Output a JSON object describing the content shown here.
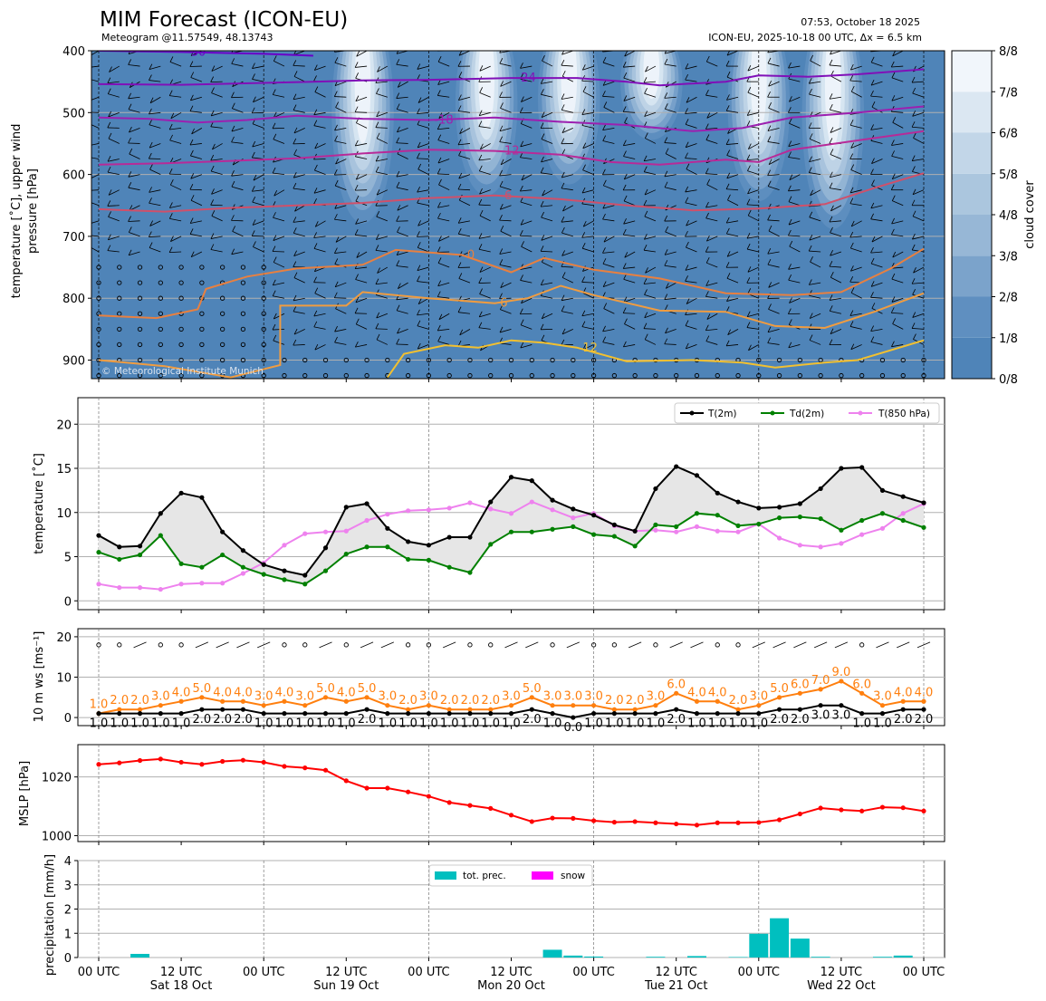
{
  "header": {
    "title": "MIM Forecast (ICON-EU)",
    "subtitle": "Meteogram @11.57549, 48.13743",
    "run_time": "07:53, October 18 2025",
    "model_info": "ICON-EU, 2025-10-18 00 UTC, Δx = 6.5 km",
    "watermark": "© Meteorological Institute Munich"
  },
  "x_axis": {
    "tick_labels": [
      "00 UTC",
      "12 UTC",
      "00 UTC",
      "12 UTC",
      "00 UTC",
      "12 UTC",
      "00 UTC",
      "12 UTC",
      "00 UTC",
      "12 UTC",
      "00 UTC"
    ],
    "day_labels": [
      "Sat 18 Oct",
      "Sun 19 Oct",
      "Mon 20 Oct",
      "Tue 21 Oct",
      "Wed 22 Oct"
    ]
  },
  "colors": {
    "cloud_scale": [
      "#4f84b8",
      "#5f8fc0",
      "#7ba3cb",
      "#97b7d6",
      "#abc6de",
      "#c2d6e8",
      "#dbe7f2",
      "#f1f6fb"
    ],
    "t2m": "#000000",
    "td2m": "#008000",
    "t850": "#ee82ee",
    "wind_mean": "#000000",
    "wind_gust": "#ff7f0e",
    "mslp": "#ff0000",
    "precip": "#00bfbf",
    "snow": "#ff00ff"
  },
  "chart_data": [
    {
      "type": "heatmap",
      "name": "upper-air",
      "ylabel": "temperature [˚C], upper wind\npressure [hPa]",
      "y_ticks": [
        400,
        500,
        600,
        700,
        800,
        900
      ],
      "ylim": [
        930,
        400
      ],
      "colorbar": {
        "label": "cloud cover",
        "ticks": [
          "0/8",
          "1/8",
          "2/8",
          "3/8",
          "4/8",
          "5/8",
          "6/8",
          "7/8",
          "8/8"
        ]
      },
      "cloud_columns": [
        {
          "x": 1.6,
          "top": 400,
          "bottom": 710
        },
        {
          "x": 2.35,
          "top": 400,
          "bottom": 660
        },
        {
          "x": 2.85,
          "top": 400,
          "bottom": 640
        },
        {
          "x": 3.35,
          "top": 400,
          "bottom": 560
        },
        {
          "x": 4.0,
          "top": 400,
          "bottom": 670
        },
        {
          "x": 4.45,
          "top": 400,
          "bottom": 720
        }
      ],
      "isotherms": [
        {
          "label": "-30",
          "color": "#6a00c8",
          "points": [
            [
              0,
              400
            ],
            [
              0.5,
              402
            ],
            [
              1,
              405
            ],
            [
              1.3,
              408
            ]
          ]
        },
        {
          "label": "-24",
          "color": "#8010b8",
          "points": [
            [
              0,
              454
            ],
            [
              0.5,
              455
            ],
            [
              1,
              452
            ],
            [
              1.3,
              450
            ],
            [
              1.6,
              448
            ],
            [
              2,
              447
            ],
            [
              2.5,
              444
            ],
            [
              2.9,
              444
            ],
            [
              3.2,
              450
            ],
            [
              3.4,
              456
            ],
            [
              3.8,
              450
            ],
            [
              4,
              440
            ],
            [
              4.3,
              442
            ],
            [
              4.6,
              438
            ],
            [
              5,
              430
            ]
          ]
        },
        {
          "label": "-18",
          "color": "#9c20b0",
          "points": [
            [
              0,
              508
            ],
            [
              0.3,
              510
            ],
            [
              0.6,
              516
            ],
            [
              0.9,
              512
            ],
            [
              1.2,
              505
            ],
            [
              1.6,
              510
            ],
            [
              2,
              512
            ],
            [
              2.4,
              508
            ],
            [
              2.8,
              515
            ],
            [
              3.2,
              520
            ],
            [
              3.6,
              530
            ],
            [
              3.9,
              525
            ],
            [
              4.2,
              508
            ],
            [
              4.6,
              500
            ],
            [
              5,
              490
            ]
          ]
        },
        {
          "label": "-12",
          "color": "#b82a98",
          "points": [
            [
              0,
              584
            ],
            [
              0.4,
              582
            ],
            [
              0.8,
              578
            ],
            [
              1.2,
              574
            ],
            [
              1.6,
              566
            ],
            [
              2,
              560
            ],
            [
              2.4,
              562
            ],
            [
              2.8,
              568
            ],
            [
              3.1,
              580
            ],
            [
              3.4,
              584
            ],
            [
              3.8,
              576
            ],
            [
              4,
              580
            ],
            [
              4.2,
              560
            ],
            [
              4.6,
              545
            ],
            [
              5,
              530
            ]
          ]
        },
        {
          "label": "-6",
          "color": "#d0506a",
          "points": [
            [
              0,
              656
            ],
            [
              0.4,
              660
            ],
            [
              0.8,
              654
            ],
            [
              1.2,
              650
            ],
            [
              1.6,
              646
            ],
            [
              2,
              638
            ],
            [
              2.4,
              634
            ],
            [
              2.8,
              640
            ],
            [
              3.2,
              650
            ],
            [
              3.6,
              658
            ],
            [
              4,
              655
            ],
            [
              4.4,
              648
            ],
            [
              4.7,
              622
            ],
            [
              5,
              598
            ]
          ]
        },
        {
          "label": "0",
          "color": "#e88040",
          "points": [
            [
              0,
              828
            ],
            [
              0.35,
              832
            ],
            [
              0.6,
              818
            ],
            [
              0.65,
              785
            ],
            [
              0.9,
              765
            ],
            [
              1.2,
              752
            ],
            [
              1.6,
              746
            ],
            [
              1.8,
              722
            ],
            [
              2.2,
              730
            ],
            [
              2.5,
              758
            ],
            [
              2.7,
              735
            ],
            [
              3,
              754
            ],
            [
              3.4,
              768
            ],
            [
              3.8,
              792
            ],
            [
              4.2,
              795
            ],
            [
              4.5,
              790
            ],
            [
              4.8,
              752
            ],
            [
              5,
              720
            ]
          ]
        },
        {
          "label": "6",
          "color": "#f09c40",
          "points": [
            [
              0,
              900
            ],
            [
              0.4,
              910
            ],
            [
              0.8,
              928
            ],
            [
              1.1,
              908
            ],
            [
              1.1,
              812
            ],
            [
              1.5,
              812
            ],
            [
              1.6,
              790
            ],
            [
              2,
              800
            ],
            [
              2.4,
              808
            ],
            [
              2.6,
              800
            ],
            [
              2.8,
              780
            ],
            [
              3,
              795
            ],
            [
              3.4,
              820
            ],
            [
              3.8,
              822
            ],
            [
              4.1,
              845
            ],
            [
              4.4,
              848
            ],
            [
              4.7,
              822
            ],
            [
              5,
              792
            ]
          ]
        },
        {
          "label": "12",
          "color": "#f2c030",
          "points": [
            [
              1.75,
              928
            ],
            [
              1.85,
              890
            ],
            [
              2.1,
              876
            ],
            [
              2.3,
              880
            ],
            [
              2.5,
              868
            ],
            [
              2.7,
              872
            ],
            [
              2.9,
              880
            ],
            [
              3.2,
              902
            ],
            [
              3.6,
              900
            ],
            [
              3.9,
              904
            ],
            [
              4.1,
              912
            ],
            [
              4.4,
              904
            ],
            [
              4.6,
              900
            ],
            [
              5,
              868
            ]
          ]
        }
      ]
    },
    {
      "type": "line",
      "name": "temperature",
      "ylabel": "temperature [˚C]",
      "ylim": [
        -1,
        23
      ],
      "y_ticks": [
        0,
        5,
        10,
        15,
        20
      ],
      "x": [
        0,
        0.125,
        0.25,
        0.375,
        0.5,
        0.625,
        0.75,
        0.875,
        1,
        1.125,
        1.25,
        1.375,
        1.5,
        1.625,
        1.75,
        1.875,
        2,
        2.125,
        2.25,
        2.375,
        2.5,
        2.625,
        2.75,
        2.875,
        3,
        3.125,
        3.25,
        3.375,
        3.5,
        3.625,
        3.75,
        3.875,
        4,
        4.125,
        4.25,
        4.375,
        4.5,
        4.625,
        4.75,
        4.875,
        5
      ],
      "series": [
        {
          "name": "T(2m)",
          "values": [
            7.4,
            6.1,
            6.2,
            9.9,
            12.2,
            11.7,
            7.8,
            5.7,
            4.1,
            3.4,
            2.9,
            6.0,
            10.6,
            11.0,
            8.2,
            6.7,
            6.3,
            7.2,
            7.2,
            11.2,
            14.0,
            13.6,
            11.4,
            10.4,
            9.7,
            8.6,
            7.9,
            12.7,
            15.2,
            14.2,
            12.2,
            11.2,
            10.5,
            10.6,
            11.0,
            12.7,
            15.0,
            15.1,
            12.5,
            11.8,
            11.1
          ]
        },
        {
          "name": "Td(2m)",
          "values": [
            5.5,
            4.7,
            5.2,
            7.4,
            4.2,
            3.8,
            5.2,
            3.8,
            3.0,
            2.4,
            1.9,
            3.4,
            5.3,
            6.1,
            6.1,
            4.7,
            4.6,
            3.8,
            3.2,
            6.4,
            7.8,
            7.8,
            8.1,
            8.4,
            7.5,
            7.3,
            6.2,
            8.6,
            8.4,
            9.9,
            9.7,
            8.5,
            8.7,
            9.4,
            9.5,
            9.3,
            8.0,
            9.1,
            9.9,
            9.1,
            8.3
          ]
        },
        {
          "name": "T(850 hPa)",
          "values": [
            1.9,
            1.5,
            1.5,
            1.3,
            1.9,
            2.0,
            2.0,
            3.1,
            4.3,
            6.3,
            7.6,
            7.8,
            7.9,
            9.1,
            9.8,
            10.2,
            10.3,
            10.5,
            11.1,
            10.4,
            9.9,
            11.2,
            10.3,
            9.4,
            9.9,
            8.5,
            7.9,
            8.0,
            7.8,
            8.4,
            7.9,
            7.8,
            8.7,
            7.1,
            6.3,
            6.1,
            6.5,
            7.5,
            8.2,
            9.9,
            11.0
          ]
        }
      ]
    },
    {
      "type": "line",
      "name": "wind",
      "ylabel": "10 m ws [ms⁻¹]",
      "ylim": [
        -2,
        22
      ],
      "y_ticks": [
        0,
        10,
        20
      ],
      "x": [
        0,
        0.125,
        0.25,
        0.375,
        0.5,
        0.625,
        0.75,
        0.875,
        1,
        1.125,
        1.25,
        1.375,
        1.5,
        1.625,
        1.75,
        1.875,
        2,
        2.125,
        2.25,
        2.375,
        2.5,
        2.625,
        2.75,
        2.875,
        3,
        3.125,
        3.25,
        3.375,
        3.5,
        3.625,
        3.75,
        3.875,
        4,
        4.125,
        4.25,
        4.375,
        4.5,
        4.625,
        4.75,
        4.875,
        5
      ],
      "series": [
        {
          "name": "mean",
          "values": [
            1.0,
            1.0,
            1.0,
            1.0,
            1.0,
            2.0,
            2.0,
            2.0,
            1.0,
            1.0,
            1.0,
            1.0,
            1.0,
            2.0,
            1.0,
            1.0,
            1.0,
            1.0,
            1.0,
            1.0,
            1.0,
            2.0,
            1.0,
            0.0,
            1.0,
            1.0,
            1.0,
            1.0,
            2.0,
            1.0,
            1.0,
            1.0,
            1.0,
            2.0,
            2.0,
            3.0,
            3.0,
            1.0,
            1.0,
            2.0,
            2.0
          ]
        },
        {
          "name": "gust",
          "values": [
            1.0,
            2.0,
            2.0,
            3.0,
            4.0,
            5.0,
            4.0,
            4.0,
            3.0,
            4.0,
            3.0,
            5.0,
            4.0,
            5.0,
            3.0,
            2.0,
            3.0,
            2.0,
            2.0,
            2.0,
            3.0,
            5.0,
            3.0,
            3.0,
            3.0,
            2.0,
            2.0,
            3.0,
            6.0,
            4.0,
            4.0,
            2.0,
            3.0,
            5.0,
            6.0,
            7.0,
            9.0,
            6.0,
            3.0,
            4.0,
            4.0
          ]
        }
      ],
      "mean_labels": [
        "1.0",
        "1.0",
        "1.0",
        "1.0",
        "1.0",
        "2.0",
        "2.0",
        "2.0",
        "1.0",
        "1.0",
        "1.0",
        "1.0",
        "1.0",
        "2.0",
        "1.0",
        "1.0",
        "1.0",
        "1.0",
        "1.0",
        "1.0",
        "1.0",
        "2.0",
        "1.0",
        "0.0",
        "1.0",
        "1.0",
        "1.0",
        "1.0",
        "2.0",
        "1.0",
        "1.0",
        "1.0",
        "1.0",
        "2.0",
        "2.0",
        "3.0",
        "3.0",
        "1.0",
        "1.0",
        "2.0",
        "2.0"
      ],
      "gust_labels": [
        "1.0",
        "2.0",
        "2.0",
        "3.0",
        "4.0",
        "5.0",
        "4.0",
        "4.0",
        "3.0",
        "4.0",
        "3.0",
        "5.0",
        "4.0",
        "5.0",
        "3.0",
        "2.0",
        "3.0",
        "2.0",
        "2.0",
        "2.0",
        "3.0",
        "5.0",
        "3.0",
        "3.0",
        "3.0",
        "2.0",
        "2.0",
        "3.0",
        "6.0",
        "4.0",
        "4.0",
        "2.0",
        "3.0",
        "5.0",
        "6.0",
        "7.0",
        "9.0",
        "6.0",
        "3.0",
        "4.0",
        "4.0"
      ]
    },
    {
      "type": "line",
      "name": "mslp",
      "ylabel": "MSLP [hPa]",
      "ylim": [
        998,
        1031
      ],
      "y_ticks": [
        1000,
        1020
      ],
      "x": [
        0,
        0.125,
        0.25,
        0.375,
        0.5,
        0.625,
        0.75,
        0.875,
        1,
        1.125,
        1.25,
        1.375,
        1.5,
        1.625,
        1.75,
        1.875,
        2,
        2.125,
        2.25,
        2.375,
        2.5,
        2.625,
        2.75,
        2.875,
        3,
        3.125,
        3.25,
        3.375,
        3.5,
        3.625,
        3.75,
        3.875,
        4,
        4.125,
        4.25,
        4.375,
        4.5,
        4.625,
        4.75,
        4.875,
        5
      ],
      "values": [
        1024.3,
        1024.8,
        1025.6,
        1026.1,
        1025.0,
        1024.3,
        1025.3,
        1025.7,
        1025.0,
        1023.6,
        1023.1,
        1022.3,
        1018.7,
        1016.2,
        1016.2,
        1014.9,
        1013.4,
        1011.3,
        1010.3,
        1009.3,
        1007.0,
        1004.8,
        1006.0,
        1005.9,
        1005.1,
        1004.6,
        1004.8,
        1004.4,
        1004.0,
        1003.6,
        1004.4,
        1004.4,
        1004.5,
        1005.4,
        1007.4,
        1009.4,
        1008.8,
        1008.4,
        1009.7,
        1009.5,
        1008.4
      ]
    },
    {
      "type": "bar",
      "name": "precipitation",
      "ylabel": "precipitation [mm/h]",
      "ylim": [
        0,
        4
      ],
      "y_ticks": [
        0,
        1,
        2,
        3,
        4
      ],
      "legend": [
        "tot. prec.",
        "snow"
      ],
      "x": [
        0.25,
        2.75,
        2.875,
        3.0,
        3.375,
        3.625,
        3.875,
        4.0,
        4.125,
        4.25,
        4.375,
        4.75,
        4.875
      ],
      "values": [
        0.15,
        0.32,
        0.08,
        0.04,
        0.03,
        0.06,
        0.02,
        0.98,
        1.62,
        0.78,
        0.03,
        0.03,
        0.08
      ],
      "snow": [
        0,
        0,
        0,
        0,
        0,
        0,
        0,
        0,
        0,
        0,
        0,
        0,
        0
      ]
    }
  ]
}
